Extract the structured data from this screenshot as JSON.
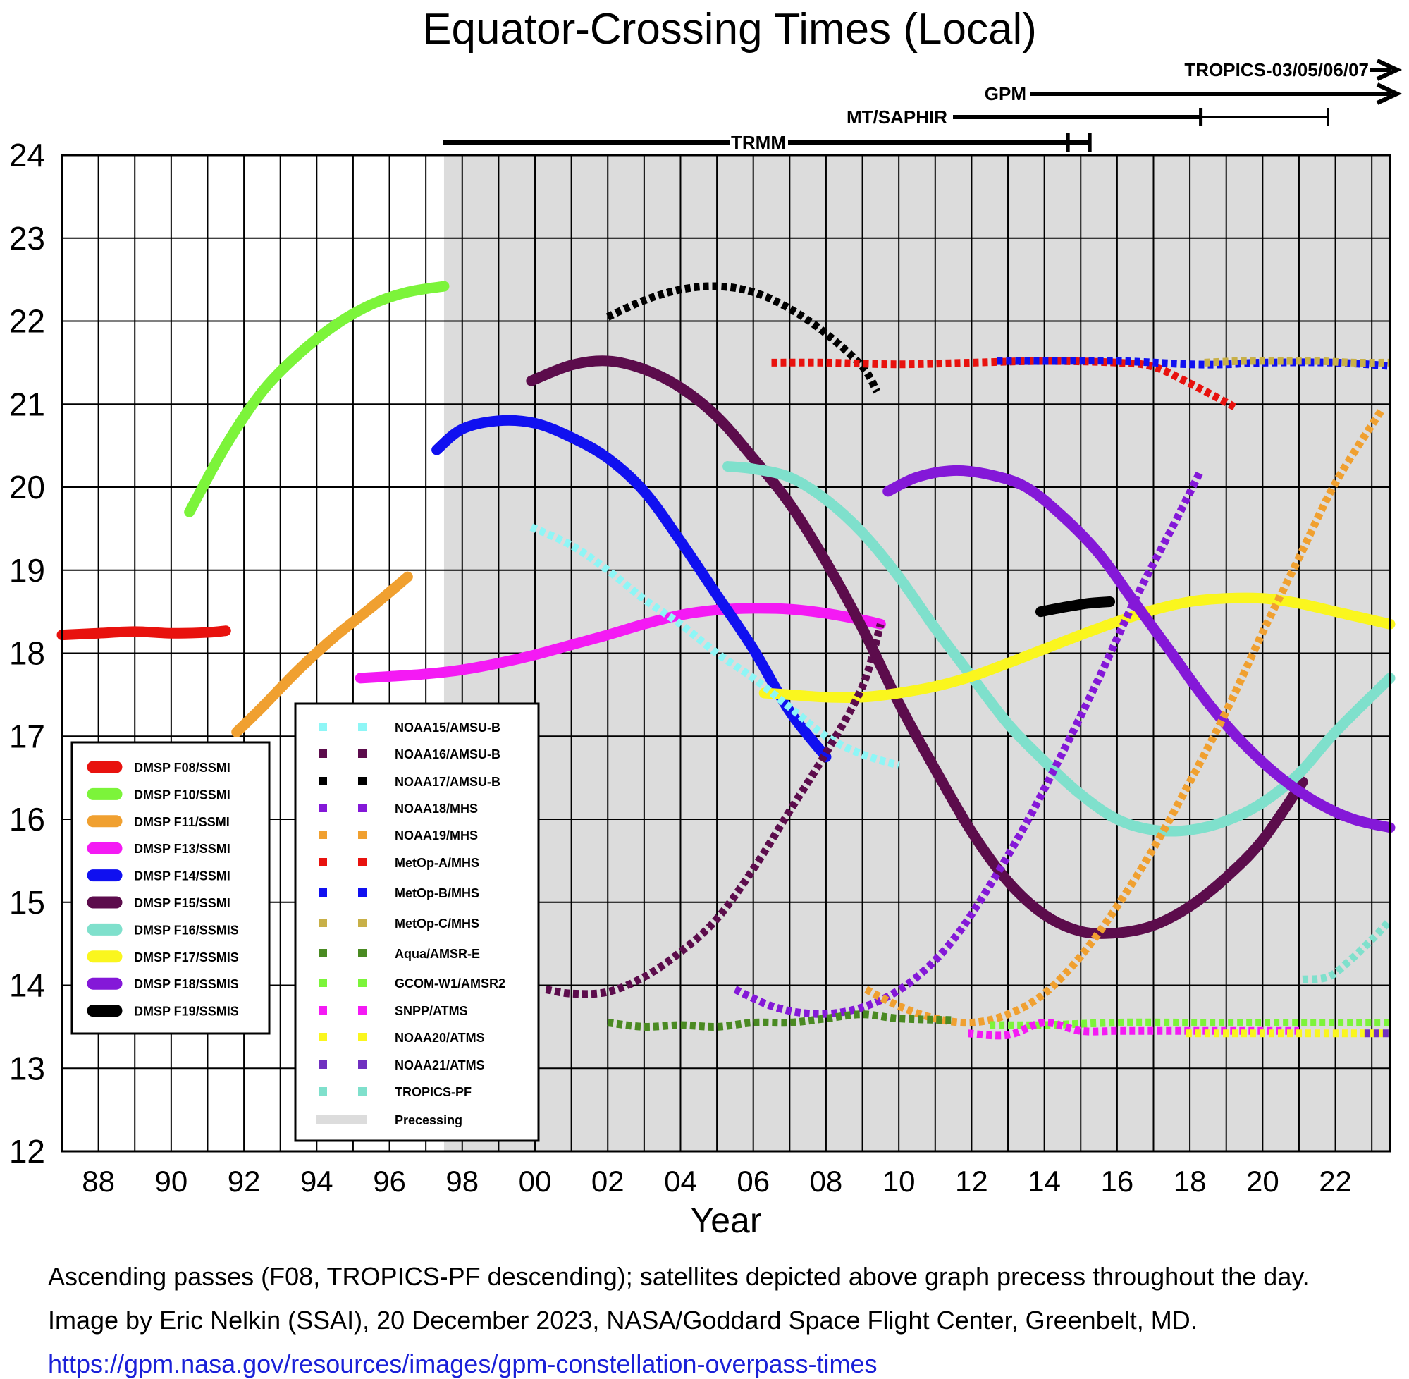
{
  "chart_data": {
    "type": "line",
    "title": "Equator-Crossing Times (Local)",
    "xlabel": "Year",
    "ylabel": "",
    "xlim": [
      1987,
      2023.5
    ],
    "ylim": [
      12,
      24
    ],
    "x_ticks": [
      1988,
      1990,
      1992,
      1994,
      1996,
      1998,
      2000,
      2002,
      2004,
      2006,
      2008,
      2010,
      2012,
      2014,
      2016,
      2018,
      2020,
      2022
    ],
    "x_tick_labels": [
      "88",
      "90",
      "92",
      "94",
      "96",
      "98",
      "00",
      "02",
      "04",
      "06",
      "08",
      "10",
      "12",
      "14",
      "16",
      "18",
      "20",
      "22"
    ],
    "y_ticks": [
      12,
      13,
      14,
      15,
      16,
      17,
      18,
      19,
      20,
      21,
      22,
      23,
      24
    ],
    "y_tick_labels": [
      "12",
      "13",
      "14",
      "15",
      "16",
      "17",
      "18",
      "19",
      "20",
      "21",
      "22",
      "23",
      "24"
    ],
    "grid": true,
    "precessing_shading_start": 1997.5,
    "legend_ssmi": {
      "position": "lower-left",
      "entries": [
        "DMSP F08/SSMI",
        "DMSP F10/SSMI",
        "DMSP F11/SSMI",
        "DMSP F13/SSMI",
        "DMSP F14/SSMI",
        "DMSP F15/SSMI",
        "DMSP F16/SSMIS",
        "DMSP F17/SSMIS",
        "DMSP F18/SSMIS",
        "DMSP F19/SSMIS"
      ]
    },
    "legend_sounder": {
      "position": "lower-left-center",
      "entries": [
        "NOAA15/AMSU-B",
        "NOAA16/AMSU-B",
        "NOAA17/AMSU-B",
        "NOAA18/MHS",
        "NOAA19/MHS",
        "MetOp-A/MHS",
        "MetOp-B/MHS",
        "MetOp-C/MHS",
        "Aqua/AMSR-E",
        "GCOM-W1/AMSR2",
        "SNPP/ATMS",
        "NOAA20/ATMS",
        "NOAA21/ATMS",
        "TROPICS-PF",
        "Precessing"
      ]
    },
    "series": [
      {
        "name": "DMSP F08/SSMI",
        "style": "solid",
        "color": "#e8120e",
        "x": [
          1987,
          1988,
          1989,
          1990,
          1991,
          1991.5
        ],
        "y": [
          18.22,
          18.24,
          18.26,
          18.24,
          18.25,
          18.27
        ]
      },
      {
        "name": "DMSP F10/SSMI",
        "style": "solid",
        "color": "#7cf43a",
        "x": [
          1990.5,
          1991.5,
          1992.5,
          1993.5,
          1994.5,
          1995.5,
          1996.5,
          1997.5
        ],
        "y": [
          19.7,
          20.5,
          21.15,
          21.6,
          21.95,
          22.2,
          22.35,
          22.42
        ]
      },
      {
        "name": "DMSP F11/SSMI",
        "style": "solid",
        "color": "#f0a030",
        "x": [
          1991.8,
          1992.5,
          1993.5,
          1994.5,
          1995.5,
          1996.5
        ],
        "y": [
          17.05,
          17.35,
          17.8,
          18.2,
          18.55,
          18.92
        ]
      },
      {
        "name": "DMSP F13/SSMI",
        "style": "solid",
        "color": "#f41af4",
        "x": [
          1995.2,
          1996,
          1997,
          1998,
          1999,
          2000,
          2001,
          2002,
          2003,
          2004,
          2005,
          2006,
          2007,
          2008,
          2009,
          2009.5
        ],
        "y": [
          17.7,
          17.72,
          17.75,
          17.8,
          17.88,
          17.98,
          18.1,
          18.22,
          18.35,
          18.46,
          18.52,
          18.54,
          18.53,
          18.48,
          18.4,
          18.35
        ]
      },
      {
        "name": "DMSP F14/SSMI",
        "style": "solid",
        "color": "#1010f0",
        "x": [
          1997.3,
          1998,
          1999,
          2000,
          2001,
          2002,
          2003,
          2004,
          2005,
          2006,
          2007,
          2008
        ],
        "y": [
          20.45,
          20.7,
          20.8,
          20.77,
          20.6,
          20.35,
          19.95,
          19.35,
          18.7,
          18.05,
          17.3,
          16.75
        ]
      },
      {
        "name": "DMSP F15/SSMI",
        "style": "solid",
        "color": "#5c0c4c",
        "x": [
          1999.9,
          2001,
          2002,
          2003,
          2004,
          2005,
          2006,
          2007,
          2008,
          2009,
          2010,
          2011,
          2012,
          2013,
          2014,
          2015,
          2016,
          2017,
          2018,
          2019,
          2020,
          2021.1
        ],
        "y": [
          21.28,
          21.47,
          21.52,
          21.42,
          21.2,
          20.85,
          20.35,
          19.8,
          19.1,
          18.3,
          17.4,
          16.6,
          15.85,
          15.25,
          14.85,
          14.65,
          14.63,
          14.72,
          14.95,
          15.3,
          15.75,
          16.45
        ]
      },
      {
        "name": "DMSP F16/SSMIS",
        "style": "solid",
        "color": "#7fe0cc",
        "x": [
          2005.3,
          2006,
          2007,
          2008,
          2009,
          2010,
          2011,
          2012,
          2013,
          2014,
          2015,
          2016,
          2017,
          2018,
          2019,
          2020,
          2021,
          2022,
          2023.5
        ],
        "y": [
          20.25,
          20.22,
          20.12,
          19.85,
          19.45,
          18.92,
          18.3,
          17.72,
          17.15,
          16.7,
          16.3,
          16.0,
          15.87,
          15.87,
          15.98,
          16.2,
          16.55,
          17.05,
          17.7
        ]
      },
      {
        "name": "DMSP F17/SSMIS",
        "style": "solid",
        "color": "#faf61e",
        "x": [
          2006.3,
          2007,
          2008,
          2009,
          2010,
          2011,
          2012,
          2013,
          2014,
          2015,
          2016,
          2017,
          2018,
          2019,
          2020,
          2021,
          2022,
          2023.5
        ],
        "y": [
          17.52,
          17.5,
          17.47,
          17.47,
          17.52,
          17.6,
          17.72,
          17.88,
          18.05,
          18.22,
          18.38,
          18.52,
          18.62,
          18.66,
          18.66,
          18.6,
          18.5,
          18.35
        ]
      },
      {
        "name": "DMSP F18/SSMIS",
        "style": "solid",
        "color": "#8418d8",
        "x": [
          2009.7,
          2010.5,
          2011.5,
          2012.5,
          2013.5,
          2014.5,
          2015.5,
          2016.5,
          2017.5,
          2018.5,
          2019.5,
          2020.5,
          2021.5,
          2022.5,
          2023.5
        ],
        "y": [
          19.95,
          20.12,
          20.2,
          20.15,
          20.0,
          19.65,
          19.2,
          18.6,
          18.0,
          17.4,
          16.9,
          16.5,
          16.2,
          16.0,
          15.9
        ]
      },
      {
        "name": "DMSP F19/SSMIS",
        "style": "solid",
        "color": "#000000",
        "x": [
          2013.9,
          2014.5,
          2015.2,
          2015.8
        ],
        "y": [
          18.5,
          18.55,
          18.6,
          18.62
        ]
      },
      {
        "name": "NOAA15/AMSU-B",
        "style": "dashed",
        "color": "#8ef6f6",
        "x": [
          1999.9,
          2001,
          2002,
          2003,
          2004,
          2005,
          2006,
          2007,
          2008,
          2009,
          2010
        ],
        "y": [
          19.52,
          19.3,
          19.0,
          18.65,
          18.35,
          18.0,
          17.7,
          17.35,
          17.0,
          16.78,
          16.65
        ]
      },
      {
        "name": "NOAA16/AMSU-B",
        "style": "dashed",
        "color": "#5c0c4c",
        "x": [
          2000.3,
          2001,
          2002,
          2003,
          2004,
          2005,
          2006,
          2007,
          2008,
          2009,
          2009.5
        ],
        "y": [
          13.95,
          13.9,
          13.92,
          14.1,
          14.4,
          14.8,
          15.4,
          16.1,
          16.8,
          17.6,
          18.35
        ]
      },
      {
        "name": "NOAA17/AMSU-B",
        "style": "dashed",
        "color": "#000000",
        "x": [
          2002,
          2003,
          2004,
          2005,
          2006,
          2007,
          2008,
          2009,
          2009.4
        ],
        "y": [
          22.05,
          22.25,
          22.38,
          22.42,
          22.35,
          22.15,
          21.85,
          21.45,
          21.15
        ]
      },
      {
        "name": "NOAA18/MHS",
        "style": "dashed",
        "color": "#8418d8",
        "x": [
          2005.5,
          2006.5,
          2007.5,
          2008.5,
          2009.5,
          2010.5,
          2011.5,
          2012.5,
          2013.5,
          2014.5,
          2015.5,
          2016.5,
          2017.5,
          2018.3
        ],
        "y": [
          13.95,
          13.75,
          13.66,
          13.68,
          13.82,
          14.1,
          14.55,
          15.2,
          15.95,
          16.8,
          17.7,
          18.65,
          19.5,
          20.2
        ]
      },
      {
        "name": "NOAA19/MHS",
        "style": "dashed",
        "color": "#f0a030",
        "x": [
          2009.1,
          2010,
          2011,
          2012,
          2013,
          2014,
          2015,
          2016,
          2017,
          2018,
          2019,
          2020,
          2021,
          2022,
          2023.3
        ],
        "y": [
          13.95,
          13.75,
          13.6,
          13.55,
          13.65,
          13.9,
          14.35,
          14.95,
          15.65,
          16.45,
          17.3,
          18.25,
          19.15,
          20.05,
          20.95
        ]
      },
      {
        "name": "MetOp-A/MHS",
        "style": "dashed",
        "color": "#e8120e",
        "x": [
          2006.5,
          2008,
          2010,
          2012,
          2014,
          2016,
          2017,
          2018,
          2019.3
        ],
        "y": [
          21.5,
          21.5,
          21.48,
          21.5,
          21.52,
          21.5,
          21.45,
          21.25,
          20.95
        ]
      },
      {
        "name": "MetOp-B/MHS",
        "style": "dashed",
        "color": "#1010f0",
        "x": [
          2012.7,
          2014,
          2016,
          2018,
          2019,
          2020,
          2022,
          2023.5
        ],
        "y": [
          21.52,
          21.52,
          21.52,
          21.48,
          21.48,
          21.5,
          21.5,
          21.46
        ]
      },
      {
        "name": "MetOp-C/MHS",
        "style": "dashed",
        "color": "#c8b048",
        "x": [
          2018.4,
          2019.5,
          2020.5,
          2021.5,
          2022.5,
          2023.5
        ],
        "y": [
          21.5,
          21.52,
          21.52,
          21.52,
          21.5,
          21.5
        ]
      },
      {
        "name": "Aqua/AMSR-E",
        "style": "dashed",
        "color": "#4a8a22",
        "x": [
          2002,
          2003,
          2004,
          2005,
          2006,
          2007,
          2008,
          2009,
          2010,
          2011.5
        ],
        "y": [
          13.55,
          13.5,
          13.52,
          13.5,
          13.55,
          13.55,
          13.6,
          13.65,
          13.6,
          13.58
        ]
      },
      {
        "name": "GCOM-W1/AMSR2",
        "style": "dashed",
        "color": "#7cf43a",
        "x": [
          2012.5,
          2014,
          2016,
          2018,
          2020,
          2022,
          2023.5
        ],
        "y": [
          13.52,
          13.52,
          13.55,
          13.55,
          13.55,
          13.55,
          13.55
        ]
      },
      {
        "name": "SNPP/ATMS",
        "style": "dashed",
        "color": "#f41af4",
        "x": [
          2011.9,
          2013,
          2014,
          2015,
          2016,
          2017,
          2018,
          2019,
          2020,
          2021
        ],
        "y": [
          13.42,
          13.4,
          13.55,
          13.45,
          13.45,
          13.45,
          13.45,
          13.45,
          13.45,
          13.45
        ]
      },
      {
        "name": "NOAA20/ATMS",
        "style": "dashed",
        "color": "#faf61e",
        "x": [
          2017.9,
          2019,
          2020,
          2021,
          2022,
          2023.5
        ],
        "y": [
          13.42,
          13.42,
          13.42,
          13.42,
          13.42,
          13.42
        ]
      },
      {
        "name": "NOAA21/ATMS",
        "style": "dashed",
        "color": "#7030c0",
        "x": [
          2022.8,
          2023.5
        ],
        "y": [
          13.42,
          13.42
        ]
      },
      {
        "name": "TROPICS-PF",
        "style": "dashed",
        "color": "#7fe0cc",
        "x": [
          2021.1,
          2021.8,
          2022.4,
          2023,
          2023.5
        ],
        "y": [
          14.07,
          14.1,
          14.3,
          14.55,
          14.78
        ]
      }
    ],
    "precessing_missions": [
      {
        "label": "TRMM",
        "start": 1997.9,
        "end": 2015.25,
        "tick": 2014.65,
        "arrow": false
      },
      {
        "label": "MT/SAPHIR",
        "start": 2011.5,
        "end": 2018.3,
        "thin_end": 2021.8,
        "arrow": false
      },
      {
        "label": "GPM",
        "start": 2014.2,
        "end": 2023.5,
        "arrow": true
      },
      {
        "label": "TROPICS-03/05/06/07",
        "start": 2023.2,
        "end": 2023.5,
        "arrow": true
      }
    ]
  },
  "footer": {
    "line1": "Ascending passes (F08, TROPICS-PF descending); satellites depicted above graph precess throughout the day.",
    "line2": "Image by Eric Nelkin (SSAI), 20 December 2023, NASA/Goddard Space Flight Center, Greenbelt, MD.",
    "link": "https://gpm.nasa.gov/resources/images/gpm-constellation-overpass-times"
  }
}
